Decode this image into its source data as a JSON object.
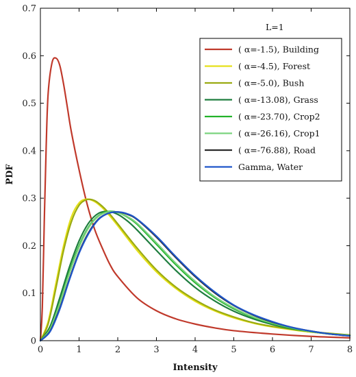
{
  "chart_data": {
    "type": "line",
    "title": "",
    "xlabel": "Intensity",
    "ylabel": "PDF",
    "xlim": [
      0,
      8
    ],
    "ylim": [
      0,
      0.7
    ],
    "xticks": [
      0,
      1,
      2,
      3,
      4,
      5,
      6,
      7,
      8
    ],
    "yticks": [
      0,
      0.1,
      0.2,
      0.3,
      0.4,
      0.5,
      0.6,
      0.7
    ],
    "xtick_labels": [
      "0",
      "1",
      "2",
      "3",
      "4",
      "5",
      "6",
      "7",
      "8"
    ],
    "ytick_labels": [
      "0",
      "0.1",
      "0.2",
      "0.3",
      "0.4",
      "0.5",
      "0.6",
      "0.7"
    ],
    "grid": false,
    "legend_title": "L=1",
    "legend_position": "top-right",
    "series": [
      {
        "name": "( α=-1.5), Building",
        "color": "#c0392b",
        "x": [
          0,
          0.05,
          0.1,
          0.15,
          0.2,
          0.3,
          0.4,
          0.5,
          0.6,
          0.7,
          0.8,
          1.0,
          1.2,
          1.4,
          1.6,
          1.8,
          2.0,
          2.5,
          3.0,
          3.5,
          4.0,
          4.5,
          5.0,
          6.0,
          7.0,
          8.0
        ],
        "y": [
          0,
          0.07,
          0.25,
          0.41,
          0.52,
          0.585,
          0.595,
          0.58,
          0.54,
          0.49,
          0.44,
          0.36,
          0.29,
          0.235,
          0.195,
          0.16,
          0.135,
          0.09,
          0.063,
          0.046,
          0.035,
          0.027,
          0.021,
          0.014,
          0.009,
          0.006
        ]
      },
      {
        "name": "( α=-4.5), Forest",
        "color": "#e5e019",
        "x": [
          0,
          0.2,
          0.4,
          0.6,
          0.8,
          1.0,
          1.2,
          1.4,
          1.6,
          1.8,
          2.0,
          2.5,
          3.0,
          3.5,
          4.0,
          4.5,
          5.0,
          5.5,
          6.0,
          7.0,
          8.0
        ],
        "y": [
          0,
          0.04,
          0.12,
          0.2,
          0.26,
          0.29,
          0.298,
          0.293,
          0.28,
          0.262,
          0.242,
          0.19,
          0.145,
          0.11,
          0.083,
          0.063,
          0.048,
          0.037,
          0.029,
          0.018,
          0.012
        ]
      },
      {
        "name": "( α=-5.0), Bush",
        "color": "#9aaa12",
        "x": [
          0,
          0.2,
          0.4,
          0.6,
          0.8,
          1.0,
          1.2,
          1.4,
          1.6,
          1.8,
          2.0,
          2.5,
          3.0,
          3.5,
          4.0,
          4.5,
          5.0,
          5.5,
          6.0,
          7.0,
          8.0
        ],
        "y": [
          0,
          0.035,
          0.11,
          0.19,
          0.25,
          0.285,
          0.297,
          0.295,
          0.283,
          0.266,
          0.246,
          0.195,
          0.149,
          0.113,
          0.086,
          0.065,
          0.05,
          0.038,
          0.03,
          0.019,
          0.012
        ]
      },
      {
        "name": "( α=-13.08), Grass",
        "color": "#1e7d3e",
        "x": [
          0,
          0.25,
          0.5,
          0.75,
          1.0,
          1.25,
          1.5,
          1.75,
          2.0,
          2.25,
          2.5,
          3.0,
          3.5,
          4.0,
          4.5,
          5.0,
          5.5,
          6.0,
          6.5,
          7.0,
          7.5,
          8.0
        ],
        "y": [
          0,
          0.03,
          0.09,
          0.155,
          0.21,
          0.248,
          0.268,
          0.272,
          0.266,
          0.252,
          0.233,
          0.19,
          0.148,
          0.112,
          0.084,
          0.062,
          0.046,
          0.034,
          0.025,
          0.019,
          0.014,
          0.011
        ]
      },
      {
        "name": "( α=-23.70), Crop2",
        "color": "#22b22a",
        "x": [
          0,
          0.25,
          0.5,
          0.75,
          1.0,
          1.25,
          1.5,
          1.75,
          2.0,
          2.25,
          2.5,
          3.0,
          3.5,
          4.0,
          4.5,
          5.0,
          5.5,
          6.0,
          6.5,
          7.0,
          7.5,
          8.0
        ],
        "y": [
          0,
          0.025,
          0.08,
          0.145,
          0.2,
          0.24,
          0.263,
          0.272,
          0.27,
          0.26,
          0.245,
          0.203,
          0.16,
          0.122,
          0.091,
          0.067,
          0.049,
          0.036,
          0.026,
          0.019,
          0.014,
          0.011
        ]
      },
      {
        "name": "( α=-26.16), Crop1",
        "color": "#7ad37e",
        "x": [
          0,
          0.25,
          0.5,
          0.75,
          1.0,
          1.25,
          1.5,
          1.75,
          2.0,
          2.25,
          2.5,
          3.0,
          3.5,
          4.0,
          4.5,
          5.0,
          5.5,
          6.0,
          6.5,
          7.0,
          7.5,
          8.0
        ],
        "y": [
          0,
          0.024,
          0.078,
          0.142,
          0.197,
          0.238,
          0.262,
          0.271,
          0.27,
          0.261,
          0.247,
          0.206,
          0.163,
          0.125,
          0.093,
          0.069,
          0.05,
          0.037,
          0.027,
          0.019,
          0.014,
          0.011
        ]
      },
      {
        "name": "( α=-76.88), Road",
        "color": "#2b2b2b",
        "x": [
          0,
          0.25,
          0.5,
          0.75,
          1.0,
          1.25,
          1.5,
          1.75,
          2.0,
          2.25,
          2.5,
          3.0,
          3.5,
          4.0,
          4.5,
          5.0,
          5.5,
          6.0,
          6.5,
          7.0,
          7.5,
          8.0
        ],
        "y": [
          0,
          0.02,
          0.068,
          0.13,
          0.186,
          0.228,
          0.256,
          0.268,
          0.271,
          0.266,
          0.255,
          0.218,
          0.175,
          0.135,
          0.101,
          0.074,
          0.054,
          0.039,
          0.028,
          0.02,
          0.014,
          0.01
        ]
      },
      {
        "name": "Gamma, Water",
        "color": "#1f56c9",
        "x": [
          0,
          0.25,
          0.5,
          0.75,
          1.0,
          1.25,
          1.5,
          1.75,
          2.0,
          2.25,
          2.5,
          3.0,
          3.5,
          4.0,
          4.5,
          5.0,
          5.5,
          6.0,
          6.5,
          7.0,
          7.5,
          8.0
        ],
        "y": [
          0,
          0.019,
          0.066,
          0.128,
          0.184,
          0.226,
          0.255,
          0.268,
          0.271,
          0.267,
          0.256,
          0.22,
          0.177,
          0.137,
          0.103,
          0.075,
          0.055,
          0.04,
          0.028,
          0.02,
          0.014,
          0.01
        ]
      }
    ]
  }
}
